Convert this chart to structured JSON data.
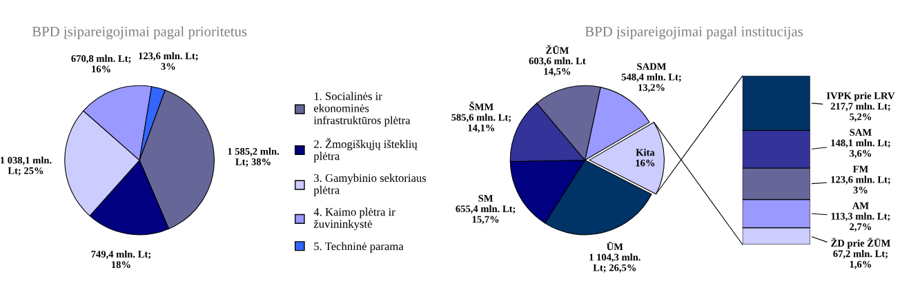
{
  "chart_data": [
    {
      "type": "pie",
      "title": "BPD įsipareigojimai pagal prioritetus",
      "legend": "right",
      "categories": [
        "1. Socialinės ir ekonominės infrastruktūros plėtra",
        "2. Žmogiškųjų išteklių plėtra",
        "3. Gamybinio sektoriaus plėtra",
        "4. Kaimo plėtra ir žuvininkystė",
        "5. Techninė parama"
      ],
      "values": [
        1585.2,
        749.4,
        1038.1,
        670.8,
        123.6
      ],
      "value_labels": [
        "1 585,2 mln.\nLt; 38%",
        "749,4 mln. Lt;\n18%",
        "1 038,1 mln.\nLt; 25%",
        "670,8 mln. Lt;\n16%",
        "123,6 mln. Lt;\n3%"
      ],
      "colors": [
        "#666699",
        "#000080",
        "#ccccff",
        "#9999ff",
        "#3366ff"
      ]
    },
    {
      "type": "pie",
      "title": "BPD įsipareigojimai pagal institucijas",
      "categories": [
        "SADM",
        "Kita",
        "ŪM",
        "SM",
        "ŠMM",
        "ŽŪM"
      ],
      "values": [
        13.2,
        16,
        26.5,
        15.7,
        14.1,
        14.5
      ],
      "value_labels": [
        "548,4 mln. Lt;\n13,2%",
        "16%",
        "1 104,3 mln.\nLt; 26,5%",
        "655,4 mln. Lt;\n15,7%",
        "585,6 mln. Lt;\n14,1%",
        "603,6 mln. Lt\n14,5%"
      ],
      "colors": [
        "#9999ff",
        "#ccccff",
        "#003366",
        "#000080",
        "#333399",
        "#666699"
      ]
    },
    {
      "type": "bar",
      "stacked": true,
      "categories": [
        null
      ],
      "series": [
        {
          "name": "ŽD prie ŽŪM",
          "color": "#ccccff",
          "values": [
            1.6
          ],
          "value_labels": [
            "67,2 mln. Lt;\n1,6%"
          ]
        },
        {
          "name": "AM",
          "color": "#9999ff",
          "values": [
            2.7
          ],
          "value_labels": [
            "113,3 mln. Lt;\n2,7%"
          ]
        },
        {
          "name": "FM",
          "color": "#666699",
          "values": [
            3
          ],
          "value_labels": [
            "123,6 mln. Lt;\n3%"
          ]
        },
        {
          "name": "SAM",
          "color": "#333399",
          "values": [
            3.6
          ],
          "value_labels": [
            "148,1 mln. Lt;\n3,6%"
          ]
        },
        {
          "name": "IVPK prie LRV",
          "color": "#003366",
          "values": [
            5.2
          ],
          "value_labels": [
            "217,7 mln. Lt;\n5,2%"
          ]
        }
      ]
    }
  ]
}
